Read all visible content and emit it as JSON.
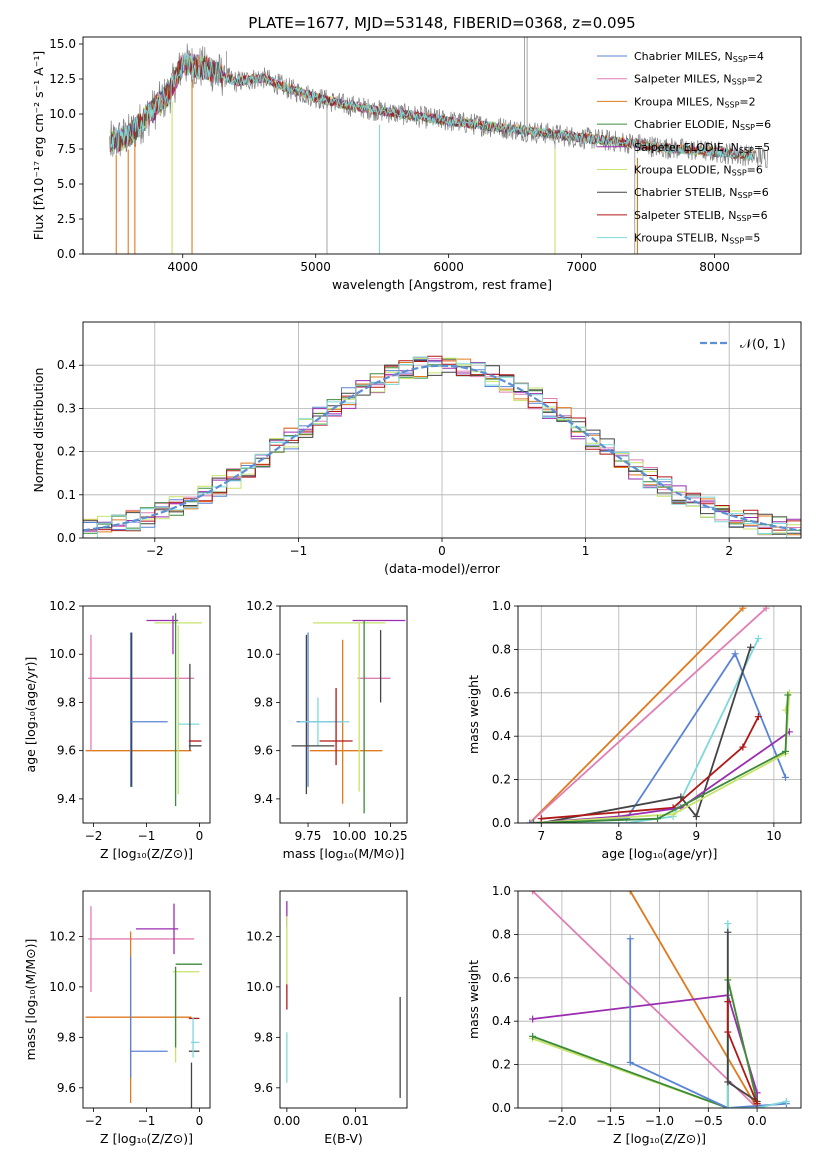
{
  "colors": {
    "chabrier_miles": "#5b84d6",
    "salpeter_miles": "#e07fb5",
    "kroupa_miles": "#e07a1f",
    "chabrier_elodie": "#3c8a3c",
    "salpeter_elodie": "#9b2db0",
    "kroupa_elodie": "#c6e36b",
    "chabrier_stelib": "#444444",
    "salpeter_stelib": "#b01717",
    "kroupa_stelib": "#7fd8db",
    "data": "#808080",
    "gauss": "#5b8fd6"
  },
  "chart_data": [
    {
      "id": "spectrum",
      "type": "line",
      "title": "PLATE=1677, MJD=53148, FIBERID=0368, z=0.095",
      "xlabel": "wavelength [Angstrom, rest frame]",
      "ylabel": "Flux [fλ10⁻¹⁷ erg cm⁻² s⁻¹ A⁻¹]",
      "xlim": [
        3250,
        8650
      ],
      "ylim": [
        0,
        15.5
      ],
      "xticks": [
        "4000",
        "5000",
        "6000",
        "7000",
        "8000"
      ],
      "yticks": [
        "0.0",
        "2.5",
        "5.0",
        "7.5",
        "10.0",
        "12.5",
        "15.0"
      ],
      "xtick_values": [
        4000,
        5000,
        6000,
        7000,
        8000
      ],
      "ytick_values": [
        0,
        2.5,
        5,
        7.5,
        10,
        12.5,
        15
      ],
      "continuum": {
        "x": [
          3450,
          3600,
          3750,
          3900,
          4000,
          4200,
          4400,
          4600,
          4800,
          5000,
          5200,
          5500,
          6000,
          6500,
          7000,
          7400,
          7600,
          8000,
          8400
        ],
        "y": [
          7.9,
          8.5,
          10.0,
          11.5,
          13.6,
          13.2,
          12.3,
          12.6,
          11.8,
          11.2,
          10.7,
          10.2,
          9.5,
          8.9,
          8.3,
          7.9,
          7.6,
          7.3,
          6.9
        ]
      },
      "legend": [
        {
          "key": "chabrier_miles",
          "label": "Chabrier MILES, N",
          "sub": "SSP",
          "tail": "=4"
        },
        {
          "key": "salpeter_miles",
          "label": "Salpeter MILES, N",
          "sub": "SSP",
          "tail": "=2"
        },
        {
          "key": "kroupa_miles",
          "label": "Kroupa MILES, N",
          "sub": "SSP",
          "tail": "=2"
        },
        {
          "key": "chabrier_elodie",
          "label": "Chabrier ELODIE, N",
          "sub": "SSP",
          "tail": "=6"
        },
        {
          "key": "salpeter_elodie",
          "label": "Salpeter ELODIE, N",
          "sub": "SSP",
          "tail": "=5"
        },
        {
          "key": "kroupa_elodie",
          "label": "Kroupa ELODIE, N",
          "sub": "SSP",
          "tail": "=6"
        },
        {
          "key": "chabrier_stelib",
          "label": "Chabrier STELIB, N",
          "sub": "SSP",
          "tail": "=6"
        },
        {
          "key": "salpeter_stelib",
          "label": "Salpeter STELIB, N",
          "sub": "SSP",
          "tail": "=6"
        },
        {
          "key": "kroupa_stelib",
          "label": "Kroupa STELIB, N",
          "sub": "SSP",
          "tail": "=5"
        }
      ]
    },
    {
      "id": "residuals",
      "type": "histogram",
      "xlabel": "(data-model)/error",
      "ylabel": "Normed distribution",
      "xlim": [
        -2.5,
        2.5
      ],
      "ylim": [
        0,
        0.5
      ],
      "xticks": [
        "−2",
        "−1",
        "0",
        "1",
        "2"
      ],
      "yticks": [
        "0.0",
        "0.1",
        "0.2",
        "0.3",
        "0.4"
      ],
      "xtick_values": [
        -2,
        -1,
        0,
        1,
        2
      ],
      "ytick_values": [
        0,
        0.1,
        0.2,
        0.3,
        0.4
      ],
      "bin_width": 0.1,
      "legend_label": "𝒩(0, 1)"
    },
    {
      "id": "age_vs_Z",
      "type": "errorbar",
      "xlabel": "Z [log₁₀(Z/Z⊙)]",
      "ylabel": "age  [log₁₀(age/yr)]",
      "xlim": [
        -2.2,
        0.2
      ],
      "ylim": [
        9.3,
        10.2
      ],
      "xticks": [
        "−2",
        "−1",
        "0"
      ],
      "yticks": [
        "9.4",
        "9.6",
        "9.8",
        "10.0",
        "10.2"
      ],
      "xtick_values": [
        -2,
        -1,
        0
      ],
      "ytick_values": [
        9.4,
        9.6,
        9.8,
        10.0,
        10.2
      ],
      "points": [
        {
          "key": "salpeter_miles",
          "x": -1.1,
          "xerr": 1.0,
          "y": 9.9,
          "yerr": 0.0
        },
        {
          "key": "kroupa_miles",
          "x": -1.15,
          "xerr": 1.0,
          "y": 9.6,
          "yerr": 0.0
        },
        {
          "key": "salpeter_miles",
          "x": -2.05,
          "xerr": 0.0,
          "y": 9.84,
          "yerr": 0.24
        },
        {
          "key": "chabrier_miles",
          "x": -1.3,
          "xerr": 0.0,
          "y": 9.77,
          "yerr": 0.32
        },
        {
          "key": "chabrier_stelib",
          "x": -1.28,
          "xerr": 0.0,
          "y": 9.77,
          "yerr": 0.32
        },
        {
          "key": "chabrier_miles",
          "x": -0.95,
          "xerr": 0.35,
          "y": 9.72,
          "yerr": 0.0
        },
        {
          "key": "salpeter_elodie",
          "x": -0.7,
          "xerr": 0.3,
          "y": 10.14,
          "yerr": 0.0
        },
        {
          "key": "kroupa_elodie",
          "x": -0.4,
          "xerr": 0.45,
          "y": 10.13,
          "yerr": 0.0
        },
        {
          "key": "chabrier_elodie",
          "x": -0.45,
          "xerr": 0.0,
          "y": 9.77,
          "yerr": 0.4
        },
        {
          "key": "salpeter_elodie",
          "x": -0.5,
          "xerr": 0.0,
          "y": 10.08,
          "yerr": 0.08
        },
        {
          "key": "kroupa_elodie",
          "x": -0.4,
          "xerr": 0.0,
          "y": 9.77,
          "yerr": 0.35
        },
        {
          "key": "kroupa_stelib",
          "x": -0.2,
          "xerr": 0.2,
          "y": 9.71,
          "yerr": 0.0
        },
        {
          "key": "chabrier_stelib",
          "x": -0.18,
          "xerr": 0.0,
          "y": 9.78,
          "yerr": 0.18
        },
        {
          "key": "salpeter_stelib",
          "x": -0.08,
          "xerr": 0.12,
          "y": 9.64,
          "yerr": 0.0
        },
        {
          "key": "chabrier_stelib",
          "x": -0.08,
          "xerr": 0.12,
          "y": 9.62,
          "yerr": 0.0
        }
      ]
    },
    {
      "id": "age_vs_mass",
      "type": "errorbar",
      "xlabel": "mass [log₁₀(M/M⊙)]",
      "ylabel": "",
      "xlim": [
        9.58,
        10.35
      ],
      "ylim": [
        9.3,
        10.2
      ],
      "xticks": [
        "9.75",
        "10.00",
        "10.25"
      ],
      "yticks": [
        "9.4",
        "9.6",
        "9.8",
        "10.0",
        "10.2"
      ],
      "xtick_values": [
        9.75,
        10.0,
        10.25
      ],
      "ytick_values": [
        9.4,
        9.6,
        9.8,
        10.0,
        10.2
      ],
      "points": [
        {
          "key": "salpeter_elodie",
          "x": 10.18,
          "xerr": 0.16,
          "y": 10.14,
          "yerr": 0.0
        },
        {
          "key": "kroupa_elodie",
          "x": 10.0,
          "xerr": 0.22,
          "y": 10.13,
          "yerr": 0.0
        },
        {
          "key": "salpeter_miles",
          "x": 10.15,
          "xerr": 0.1,
          "y": 9.9,
          "yerr": 0.0
        },
        {
          "key": "kroupa_miles",
          "x": 9.98,
          "xerr": 0.22,
          "y": 9.6,
          "yerr": 0.0
        },
        {
          "key": "kroupa_miles",
          "x": 9.96,
          "xerr": 0.0,
          "y": 9.72,
          "yerr": 0.34
        },
        {
          "key": "chabrier_miles",
          "x": 9.75,
          "xerr": 0.0,
          "y": 9.77,
          "yerr": 0.32
        },
        {
          "key": "chabrier_stelib",
          "x": 9.74,
          "xerr": 0.0,
          "y": 9.75,
          "yerr": 0.33
        },
        {
          "key": "chabrier_miles",
          "x": 9.82,
          "xerr": 0.14,
          "y": 9.72,
          "yerr": 0.0
        },
        {
          "key": "kroupa_stelib",
          "x": 9.85,
          "xerr": 0.15,
          "y": 9.72,
          "yerr": 0.0
        },
        {
          "key": "kroupa_stelib",
          "x": 9.81,
          "xerr": 0.0,
          "y": 9.72,
          "yerr": 0.1
        },
        {
          "key": "salpeter_stelib",
          "x": 9.92,
          "xerr": 0.0,
          "y": 9.7,
          "yerr": 0.16
        },
        {
          "key": "salpeter_stelib",
          "x": 9.92,
          "xerr": 0.1,
          "y": 9.64,
          "yerr": 0.0
        },
        {
          "key": "chabrier_stelib",
          "x": 9.78,
          "xerr": 0.13,
          "y": 9.62,
          "yerr": 0.0
        },
        {
          "key": "chabrier_elodie",
          "x": 10.09,
          "xerr": 0.0,
          "y": 9.74,
          "yerr": 0.4
        },
        {
          "key": "kroupa_elodie",
          "x": 10.06,
          "xerr": 0.0,
          "y": 9.78,
          "yerr": 0.35
        },
        {
          "key": "chabrier_stelib",
          "x": 10.19,
          "xerr": 0.0,
          "y": 9.95,
          "yerr": 0.15
        }
      ]
    },
    {
      "id": "weight_vs_age",
      "type": "line",
      "xlabel": "age  [log₁₀(age/yr)]",
      "ylabel": "mass weight",
      "xlim": [
        6.7,
        10.35
      ],
      "ylim": [
        0,
        1.0
      ],
      "xticks": [
        "7",
        "8",
        "9",
        "10"
      ],
      "yticks": [
        "0.0",
        "0.2",
        "0.4",
        "0.6",
        "0.8",
        "1.0"
      ],
      "xtick_values": [
        7,
        8,
        9,
        10
      ],
      "ytick_values": [
        0,
        0.2,
        0.4,
        0.6,
        0.8,
        1.0
      ],
      "series": [
        {
          "key": "kroupa_miles",
          "x": [
            6.85,
            9.6
          ],
          "y": [
            0.0,
            0.99
          ]
        },
        {
          "key": "salpeter_miles",
          "x": [
            6.85,
            9.9
          ],
          "y": [
            0.0,
            0.99
          ]
        },
        {
          "key": "chabrier_miles",
          "x": [
            6.85,
            8.1,
            9.5,
            10.15
          ],
          "y": [
            0.0,
            0.02,
            0.78,
            0.21
          ]
        },
        {
          "key": "kroupa_stelib",
          "x": [
            6.9,
            8.1,
            8.7,
            9.8
          ],
          "y": [
            0.0,
            0.0,
            0.03,
            0.85
          ]
        },
        {
          "key": "chabrier_stelib",
          "x": [
            7.0,
            8.8,
            9.0,
            9.7
          ],
          "y": [
            0.0,
            0.12,
            0.03,
            0.81
          ]
        },
        {
          "key": "salpeter_stelib",
          "x": [
            7.0,
            8.7,
            9.6,
            9.8
          ],
          "y": [
            0.02,
            0.07,
            0.35,
            0.49
          ]
        },
        {
          "key": "salpeter_elodie",
          "x": [
            6.9,
            8.0,
            8.8,
            10.2
          ],
          "y": [
            0.0,
            0.03,
            0.07,
            0.42
          ]
        },
        {
          "key": "kroupa_elodie",
          "x": [
            6.9,
            8.7,
            10.15,
            10.2,
            10.15
          ],
          "y": [
            0.0,
            0.04,
            0.32,
            0.6,
            0.52
          ]
        },
        {
          "key": "chabrier_elodie",
          "x": [
            6.9,
            8.5,
            10.15,
            10.18
          ],
          "y": [
            0.0,
            0.02,
            0.33,
            0.59
          ]
        }
      ]
    },
    {
      "id": "mass_vs_Z",
      "type": "errorbar",
      "xlabel": "Z [log₁₀(Z/Z⊙)]",
      "ylabel": "mass [log₁₀(M/M⊙)]",
      "xlim": [
        -2.2,
        0.2
      ],
      "ylim": [
        9.52,
        10.38
      ],
      "xticks": [
        "−2",
        "−1",
        "0"
      ],
      "yticks": [
        "9.6",
        "9.8",
        "10.0",
        "10.2"
      ],
      "xtick_values": [
        -2,
        -1,
        0
      ],
      "ytick_values": [
        9.6,
        9.8,
        10.0,
        10.2
      ],
      "points": [
        {
          "key": "salpeter_miles",
          "x": -1.1,
          "xerr": 1.0,
          "y": 10.19,
          "yerr": 0.0
        },
        {
          "key": "salpeter_miles",
          "x": -2.05,
          "xerr": 0.0,
          "y": 10.15,
          "yerr": 0.17
        },
        {
          "key": "kroupa_miles",
          "x": -1.15,
          "xerr": 1.0,
          "y": 9.88,
          "yerr": 0.0
        },
        {
          "key": "kroupa_miles",
          "x": -1.3,
          "xerr": 0.0,
          "y": 9.88,
          "yerr": 0.34
        },
        {
          "key": "chabrier_miles",
          "x": -1.3,
          "xerr": 0.0,
          "y": 9.88,
          "yerr": 0.24
        },
        {
          "key": "chabrier_miles",
          "x": -0.95,
          "xerr": 0.35,
          "y": 9.745,
          "yerr": 0.0
        },
        {
          "key": "salpeter_elodie",
          "x": -0.8,
          "xerr": 0.4,
          "y": 10.23,
          "yerr": 0.0
        },
        {
          "key": "salpeter_elodie",
          "x": -0.48,
          "xerr": 0.0,
          "y": 10.23,
          "yerr": 0.1
        },
        {
          "key": "kroupa_elodie",
          "x": -0.25,
          "xerr": 0.25,
          "y": 10.06,
          "yerr": 0.0
        },
        {
          "key": "kroupa_elodie",
          "x": -0.45,
          "xerr": 0.0,
          "y": 9.88,
          "yerr": 0.18
        },
        {
          "key": "chabrier_elodie",
          "x": -0.2,
          "xerr": 0.25,
          "y": 10.09,
          "yerr": 0.0
        },
        {
          "key": "chabrier_elodie",
          "x": -0.45,
          "xerr": 0.0,
          "y": 9.92,
          "yerr": 0.16
        },
        {
          "key": "salpeter_stelib",
          "x": -0.1,
          "xerr": 0.1,
          "y": 9.875,
          "yerr": 0.0
        },
        {
          "key": "kroupa_stelib",
          "x": -0.08,
          "xerr": 0.08,
          "y": 9.78,
          "yerr": 0.0
        },
        {
          "key": "chabrier_stelib",
          "x": -0.1,
          "xerr": 0.1,
          "y": 9.745,
          "yerr": 0.0
        },
        {
          "key": "chabrier_stelib",
          "x": -0.15,
          "xerr": 0.0,
          "y": 9.6,
          "yerr": 0.1
        },
        {
          "key": "kroupa_stelib",
          "x": -0.12,
          "xerr": 0.0,
          "y": 9.8,
          "yerr": 0.08
        }
      ]
    },
    {
      "id": "mass_vs_ebv",
      "type": "errorbar",
      "xlabel": "E(B-V)",
      "ylabel": "",
      "xlim": [
        -0.001,
        0.0175
      ],
      "ylim": [
        9.52,
        10.38
      ],
      "xticks": [
        "0.00",
        "0.01"
      ],
      "yticks": [
        "9.6",
        "9.8",
        "10.0",
        "10.2"
      ],
      "xtick_values": [
        0,
        0.01
      ],
      "ytick_values": [
        9.6,
        9.8,
        10.0,
        10.2
      ],
      "points": [
        {
          "key": "salpeter_elodie",
          "x": 0.0,
          "xerr": 0.0,
          "y": 10.29,
          "yerr": 0.05
        },
        {
          "key": "kroupa_elodie",
          "x": 0.0,
          "xerr": 0.0,
          "y": 10.13,
          "yerr": 0.15
        },
        {
          "key": "salpeter_stelib",
          "x": 0.0,
          "xerr": 0.0,
          "y": 9.96,
          "yerr": 0.05
        },
        {
          "key": "kroupa_stelib",
          "x": 0.0,
          "xerr": 0.0,
          "y": 9.72,
          "yerr": 0.1
        },
        {
          "key": "chabrier_stelib",
          "x": 0.0165,
          "xerr": 0.0,
          "y": 9.76,
          "yerr": 0.2
        }
      ]
    },
    {
      "id": "weight_vs_Z",
      "type": "line",
      "xlabel": "Z [log₁₀(Z/Z⊙)]",
      "ylabel": "mass weight",
      "xlim": [
        -2.45,
        0.45
      ],
      "ylim": [
        0,
        1.0
      ],
      "xticks": [
        "−2.0",
        "−1.5",
        "−1.0",
        "−0.5",
        "0.0"
      ],
      "yticks": [
        "0.0",
        "0.2",
        "0.4",
        "0.6",
        "0.8",
        "1.0"
      ],
      "xtick_values": [
        -2.0,
        -1.5,
        -1.0,
        -0.5,
        0.0
      ],
      "ytick_values": [
        0,
        0.2,
        0.4,
        0.6,
        0.8,
        1.0
      ],
      "series": [
        {
          "key": "salpeter_miles",
          "x": [
            -2.3,
            0.0
          ],
          "y": [
            1.0,
            0.0
          ]
        },
        {
          "key": "kroupa_miles",
          "x": [
            -1.3,
            0.0
          ],
          "y": [
            1.0,
            0.0
          ]
        },
        {
          "key": "salpeter_elodie",
          "x": [
            -2.3,
            -0.3,
            0.0,
            0.0
          ],
          "y": [
            0.41,
            0.52,
            0.07,
            0.02
          ]
        },
        {
          "key": "kroupa_elodie",
          "x": [
            -2.3,
            -0.3,
            -0.3,
            0.0
          ],
          "y": [
            0.32,
            0.0,
            0.6,
            0.02
          ]
        },
        {
          "key": "chabrier_elodie",
          "x": [
            -2.3,
            -0.3,
            -0.3,
            0.0
          ],
          "y": [
            0.33,
            0.0,
            0.59,
            0.03
          ]
        },
        {
          "key": "chabrier_miles",
          "x": [
            -1.3,
            -1.3,
            -0.3,
            0.3
          ],
          "y": [
            0.78,
            0.21,
            0.0,
            0.02
          ]
        },
        {
          "key": "kroupa_stelib",
          "x": [
            -0.3,
            -0.3,
            0.0,
            0.3
          ],
          "y": [
            0.85,
            0.0,
            0.0,
            0.03
          ]
        },
        {
          "key": "chabrier_stelib",
          "x": [
            -0.3,
            -0.3,
            0.0
          ],
          "y": [
            0.81,
            0.12,
            0.03
          ]
        },
        {
          "key": "salpeter_stelib",
          "x": [
            -0.3,
            -0.3,
            0.0
          ],
          "y": [
            0.49,
            0.35,
            0.02
          ]
        }
      ]
    }
  ]
}
